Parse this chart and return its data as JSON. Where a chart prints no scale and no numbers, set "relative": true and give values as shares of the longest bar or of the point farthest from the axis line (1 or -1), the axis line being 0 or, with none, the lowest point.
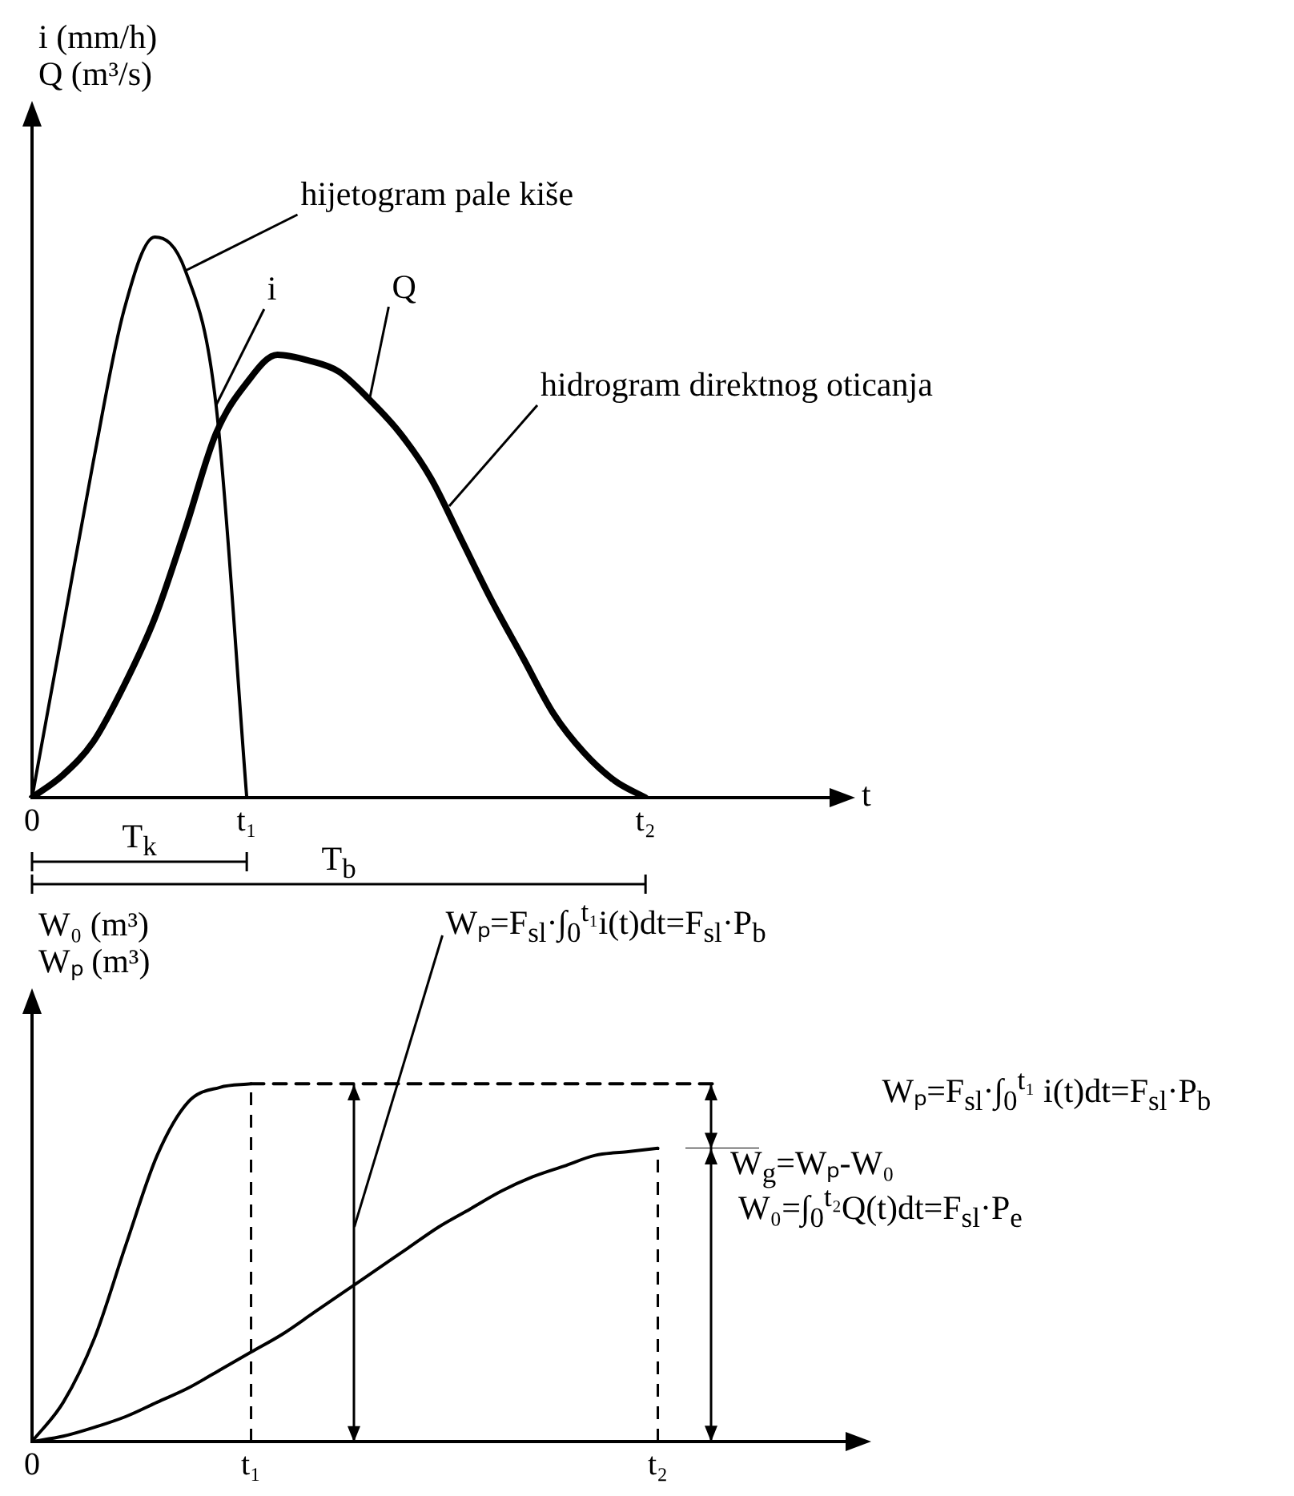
{
  "chart_data": [
    {
      "type": "line",
      "relative": true,
      "ylabel": "i (mm/h)\nQ (m³/s)",
      "xlabel": "t",
      "marker": "none",
      "grid": false,
      "categories": [
        "0",
        null,
        null,
        null,
        null,
        null,
        null,
        "t₁",
        null,
        null,
        null,
        null,
        null,
        null,
        null,
        null,
        null,
        null,
        null,
        null,
        "t₂",
        null,
        null,
        null,
        null,
        null,
        null
      ],
      "series": [
        {
          "name": "i",
          "color": "#000000",
          "values": [
            0,
            0.3,
            0.6,
            0.87,
            1,
            0.94,
            0.7,
            0,
            null,
            null,
            null,
            null,
            null,
            null,
            null,
            null,
            null,
            null,
            null,
            null,
            null,
            null,
            null,
            null,
            null,
            null,
            null
          ]
        },
        {
          "name": "Q",
          "color": "#000000",
          "values": [
            0,
            0.04,
            0.1,
            0.2,
            0.32,
            0.48,
            0.65,
            0.74,
            0.79,
            0.78,
            0.76,
            0.71,
            0.65,
            0.57,
            0.46,
            0.35,
            0.25,
            0.15,
            0.08,
            0.03,
            0,
            null,
            null,
            null,
            null,
            null,
            null
          ]
        }
      ],
      "annotations": [
        "hijetogram pale kiše",
        "hidrogram direktnog oticanja",
        "T$_{k}$",
        "T$_{b}$"
      ]
    },
    {
      "type": "line",
      "relative": true,
      "ylabel": "W₀ (m³)\nWₚ (m³)",
      "marker": "none",
      "grid": false,
      "categories": [
        "0",
        null,
        null,
        null,
        null,
        null,
        null,
        "t₁",
        null,
        null,
        null,
        null,
        null,
        null,
        null,
        null,
        null,
        null,
        null,
        null,
        "t₂",
        null,
        null,
        null,
        null,
        null,
        null
      ],
      "series": [
        {
          "color": "#000000",
          "values": [
            0,
            0.11,
            0.29,
            0.55,
            0.8,
            0.95,
            0.99,
            1,
            null,
            null,
            null,
            null,
            null,
            null,
            null,
            null,
            null,
            null,
            null,
            null,
            null,
            null,
            null,
            null,
            null,
            null,
            null
          ]
        },
        {
          "color": "#000000",
          "line_style": "dashed",
          "values": [
            null,
            null,
            null,
            null,
            null,
            null,
            null,
            1,
            1,
            1,
            1,
            1,
            1,
            1,
            1,
            1,
            1,
            1,
            1,
            1,
            1,
            1,
            1,
            null,
            null,
            null,
            null
          ]
        },
        {
          "color": "#000000",
          "values": [
            0,
            0.015,
            0.04,
            0.07,
            0.11,
            0.15,
            0.2,
            0.25,
            0.3,
            0.36,
            0.42,
            0.48,
            0.54,
            0.6,
            0.65,
            0.7,
            0.74,
            0.77,
            0.8,
            0.81,
            0.82,
            null,
            null,
            null,
            null,
            null,
            null
          ]
        }
      ],
      "ref_lines": [
        {
          "axis": "x",
          "value": "t₁",
          "line_style": "dashed"
        },
        {
          "axis": "x",
          "value": "t₂",
          "line_style": "dashed"
        }
      ],
      "annotations": [
        "Wₚ=F$_{sl}$·∫$_{0}$$^{t₁}$i(t)dt=F$_{sl}$·P$_{b}$",
        "Wₚ=F$_{sl}$·∫$_{0}$$^{t₁}$ i(t)dt=F$_{sl}$·P$_{b}$",
        "W$_{g}$=Wₚ-W₀",
        "W₀=∫$_{0}$$^{t₂}$Q(t)dt=F$_{sl}$·P$_{e}$"
      ]
    }
  ]
}
